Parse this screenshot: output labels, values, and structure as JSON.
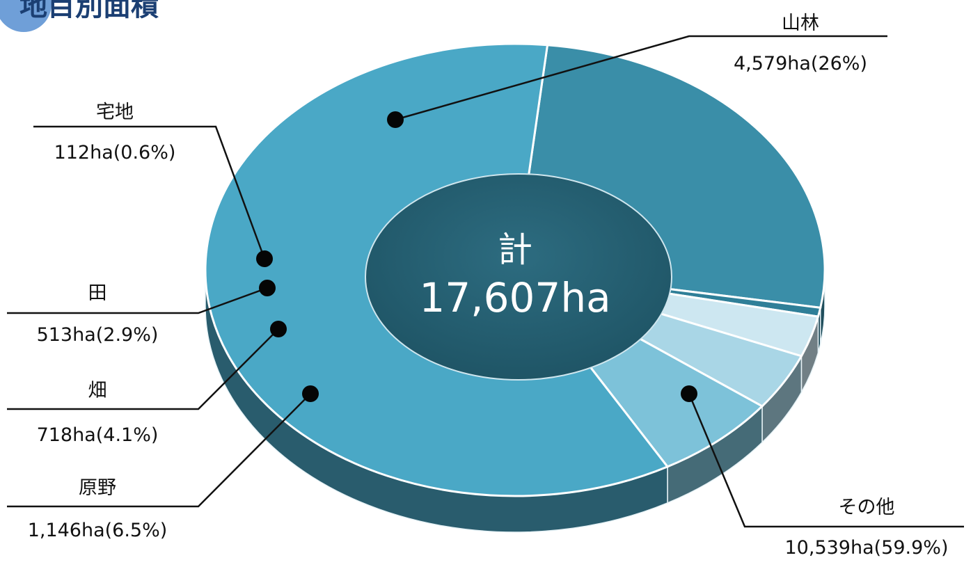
{
  "chart_data": {
    "type": "pie",
    "title": "地目別面積",
    "center_label": "計",
    "center_value": "17,607ha",
    "unit": "ha",
    "slices": [
      {
        "name": "山林",
        "value": 4579,
        "percent": 26.0,
        "value_label": "4,579ha(26%)",
        "color": "#3a8ea8"
      },
      {
        "name": "宅地",
        "value": 112,
        "percent": 0.6,
        "value_label": "112ha(0.6%)",
        "color": "#2f7f98"
      },
      {
        "name": "田",
        "value": 513,
        "percent": 2.9,
        "value_label": "513ha(2.9%)",
        "color": "#cde7f1"
      },
      {
        "name": "畑",
        "value": 718,
        "percent": 4.1,
        "value_label": "718ha(4.1%)",
        "color": "#a9d6e6"
      },
      {
        "name": "原野",
        "value": 1146,
        "percent": 6.5,
        "value_label": "1,146ha(6.5%)",
        "color": "#7dc2d9"
      },
      {
        "name": "その他",
        "value": 10539,
        "percent": 59.9,
        "value_label": "10,539ha(59.9%)",
        "color": "#4aa8c6"
      }
    ]
  }
}
